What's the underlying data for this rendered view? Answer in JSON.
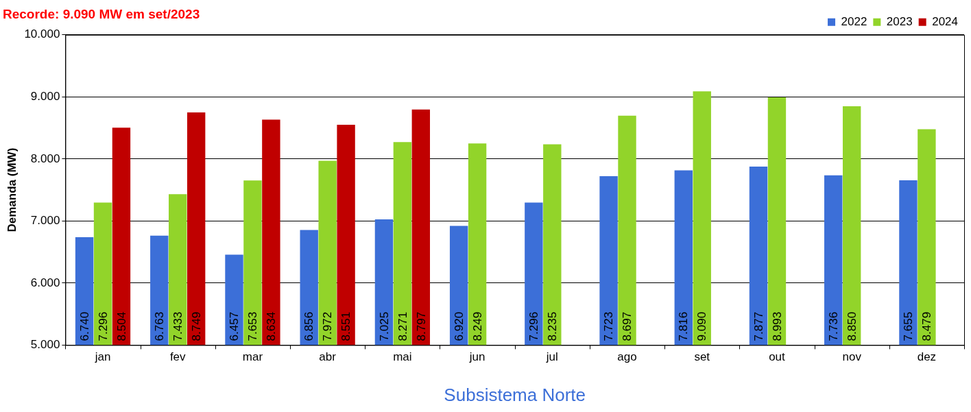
{
  "chart_data": {
    "type": "bar",
    "title": "Recorde: 9.090 MW em set/2023",
    "xlabel": "Subsistema Norte",
    "ylabel": "Demanda (MW)",
    "categories": [
      "jan",
      "fev",
      "mar",
      "abr",
      "mai",
      "jun",
      "jul",
      "ago",
      "set",
      "out",
      "nov",
      "dez"
    ],
    "series": [
      {
        "name": "2022",
        "color": "#3c6fd8",
        "values": [
          6740,
          6763,
          6457,
          6856,
          7025,
          6920,
          7296,
          7723,
          7816,
          7877,
          7736,
          7655
        ],
        "value_labels": [
          "6.740",
          "6.763",
          "6.457",
          "6.856",
          "7.025",
          "6.920",
          "7.296",
          "7.723",
          "7.816",
          "7.877",
          "7.736",
          "7.655"
        ]
      },
      {
        "name": "2023",
        "color": "#92d42a",
        "values": [
          7296,
          7433,
          7653,
          7972,
          8271,
          8249,
          8235,
          8697,
          9090,
          8993,
          8850,
          8479
        ],
        "value_labels": [
          "7.296",
          "7.433",
          "7.653",
          "7.972",
          "8.271",
          "8.249",
          "8.235",
          "8.697",
          "9.090",
          "8.993",
          "8.850",
          "8.479"
        ]
      },
      {
        "name": "2024",
        "color": "#c00000",
        "values": [
          8504,
          8749,
          8634,
          8551,
          8797,
          null,
          null,
          null,
          null,
          null,
          null,
          null
        ],
        "value_labels": [
          "8.504",
          "8.749",
          "8.634",
          "8.551",
          "8.797",
          null,
          null,
          null,
          null,
          null,
          null,
          null
        ]
      }
    ],
    "ylim": [
      5000,
      10000
    ],
    "yticks": [
      {
        "value": 5000,
        "label": "5.000"
      },
      {
        "value": 6000,
        "label": "6.000"
      },
      {
        "value": 7000,
        "label": "7.000"
      },
      {
        "value": 8000,
        "label": "8.000"
      },
      {
        "value": 9000,
        "label": "9.000"
      },
      {
        "value": 10000,
        "label": "10.000"
      }
    ],
    "grid": "y",
    "legend": "top right"
  }
}
